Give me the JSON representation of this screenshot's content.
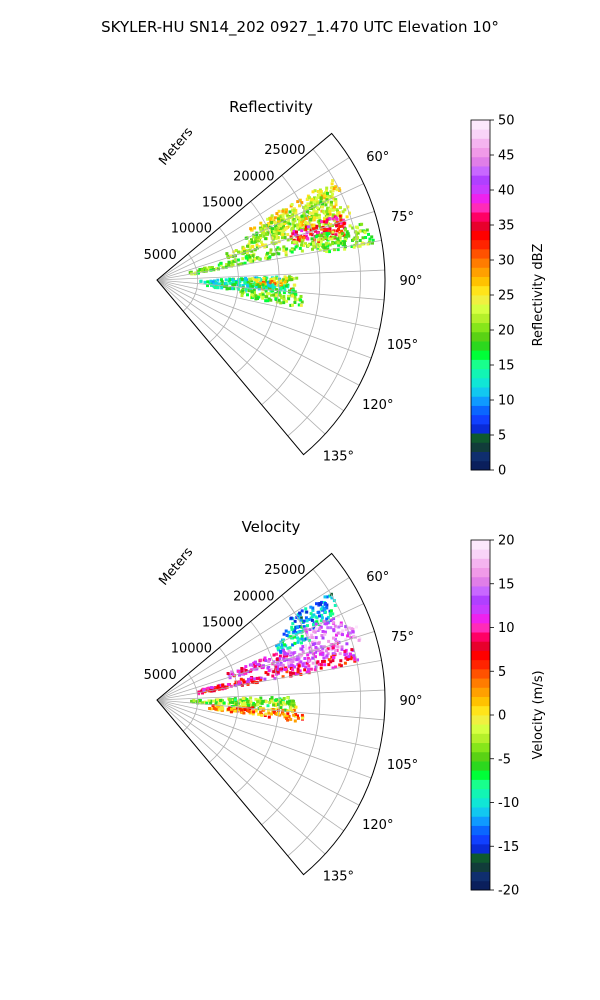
{
  "figure": {
    "title": "SKYLER-HU  SN14_202  0927_1.470 UTC Elevation 10°"
  },
  "chart_data": [
    {
      "type": "heatmap",
      "subtype": "polar-sector-ppi",
      "title": "Reflectivity",
      "range_label": "Meters",
      "range_ticks": [
        5000,
        10000,
        15000,
        20000,
        25000
      ],
      "range_max": 28000,
      "azimuth_range_deg": [
        50,
        140
      ],
      "azimuth_ticks_deg": [
        60,
        75,
        90,
        105,
        120,
        135
      ],
      "grid": true,
      "colorbar": {
        "label": "Reflectivity dBZ",
        "min": 0,
        "max": 50,
        "ticks": [
          0,
          5,
          10,
          15,
          20,
          25,
          30,
          35,
          40,
          45,
          50
        ],
        "colors": [
          "#0a1f5c",
          "#0f2e6e",
          "#113c3a",
          "#0f5a2e",
          "#0a2bd8",
          "#1040ff",
          "#0a66ff",
          "#0f9aff",
          "#12c8f0",
          "#10e6d6",
          "#12f5b4",
          "#18ff8c",
          "#00ff38",
          "#2cd81e",
          "#5ad214",
          "#86e61a",
          "#b4f02a",
          "#d6ff40",
          "#f0f040",
          "#ffe41a",
          "#ffc200",
          "#ffa000",
          "#ff7c00",
          "#ff5200",
          "#ff2400",
          "#ff0000",
          "#e8002c",
          "#ff0064",
          "#ff2bb8",
          "#ee22ee",
          "#c83cff",
          "#b040ff",
          "#c868ff",
          "#e07ee8",
          "#f09ae8",
          "#f4b4f0",
          "#f8d4f8",
          "#fce8fc"
        ]
      },
      "echoes": [
        {
          "az": 62,
          "r0": 13000,
          "r1": 25000,
          "dbz": 25
        },
        {
          "az": 64,
          "r0": 14000,
          "r1": 24000,
          "dbz": 22
        },
        {
          "az": 66,
          "r0": 12000,
          "r1": 24000,
          "dbz": 21
        },
        {
          "az": 68,
          "r0": 15000,
          "r1": 24000,
          "dbz": 24
        },
        {
          "az": 70,
          "r0": 9000,
          "r1": 25000,
          "dbz": 22
        },
        {
          "az": 72,
          "r0": 17000,
          "r1": 24000,
          "dbz": 36
        },
        {
          "az": 74,
          "r0": 18000,
          "r1": 24000,
          "dbz": 33
        },
        {
          "az": 76,
          "r0": 4000,
          "r1": 26000,
          "dbz": 20
        },
        {
          "az": 78,
          "r0": 20000,
          "r1": 27000,
          "dbz": 20
        },
        {
          "az": 90,
          "r0": 5000,
          "r1": 16000,
          "dbz": 14
        },
        {
          "az": 90,
          "r0": 11000,
          "r1": 17000,
          "dbz": 22
        },
        {
          "az": 92,
          "r0": 12000,
          "r1": 17000,
          "dbz": 28
        },
        {
          "az": 94,
          "r0": 6000,
          "r1": 17000,
          "dbz": 15
        },
        {
          "az": 98,
          "r0": 10000,
          "r1": 18000,
          "dbz": 20
        }
      ]
    },
    {
      "type": "heatmap",
      "subtype": "polar-sector-ppi",
      "title": "Velocity",
      "range_label": "Meters",
      "range_ticks": [
        5000,
        10000,
        15000,
        20000,
        25000
      ],
      "range_max": 28000,
      "azimuth_range_deg": [
        50,
        140
      ],
      "azimuth_ticks_deg": [
        60,
        75,
        90,
        105,
        120,
        135
      ],
      "grid": true,
      "colorbar": {
        "label": "Velocity (m/s)",
        "min": -20,
        "max": 20,
        "ticks": [
          -20,
          -15,
          -10,
          -5,
          0,
          5,
          10,
          15,
          20
        ],
        "colors": [
          "#0a1f5c",
          "#0f2e6e",
          "#113c3a",
          "#0f5a2e",
          "#0a2bd8",
          "#1040ff",
          "#0a66ff",
          "#0f9aff",
          "#12c8f0",
          "#10e6d6",
          "#12f5b4",
          "#18ff8c",
          "#00ff38",
          "#2cd81e",
          "#5ad214",
          "#86e61a",
          "#b4f02a",
          "#d6ff40",
          "#f0f040",
          "#ffe41a",
          "#ffc200",
          "#ffa000",
          "#ff7c00",
          "#ff5200",
          "#ff2400",
          "#ff0000",
          "#e8002c",
          "#ff0064",
          "#ff2bb8",
          "#ee22ee",
          "#c83cff",
          "#b040ff",
          "#c868ff",
          "#e07ee8",
          "#f09ae8",
          "#f4b4f0",
          "#f8d4f8",
          "#fce8fc"
        ]
      },
      "echoes": [
        {
          "az": 60,
          "r0": 19000,
          "r1": 25000,
          "vel": -12
        },
        {
          "az": 63,
          "r0": 17000,
          "r1": 24000,
          "vel": -11
        },
        {
          "az": 66,
          "r0": 16000,
          "r1": 20000,
          "vel": -10
        },
        {
          "az": 66,
          "r0": 20000,
          "r1": 25000,
          "vel": 15
        },
        {
          "az": 70,
          "r0": 9000,
          "r1": 17000,
          "vel": 11
        },
        {
          "az": 71,
          "r0": 17000,
          "r1": 26000,
          "vel": 15
        },
        {
          "az": 74,
          "r0": 14000,
          "r1": 24000,
          "vel": 13
        },
        {
          "az": 77,
          "r0": 5000,
          "r1": 25000,
          "vel": 9
        },
        {
          "az": 90,
          "r0": 4000,
          "r1": 16000,
          "vel": -4
        },
        {
          "az": 92,
          "r0": 9000,
          "r1": 17000,
          "vel": -3
        },
        {
          "az": 96,
          "r0": 6000,
          "r1": 18000,
          "vel": 3
        }
      ]
    }
  ]
}
